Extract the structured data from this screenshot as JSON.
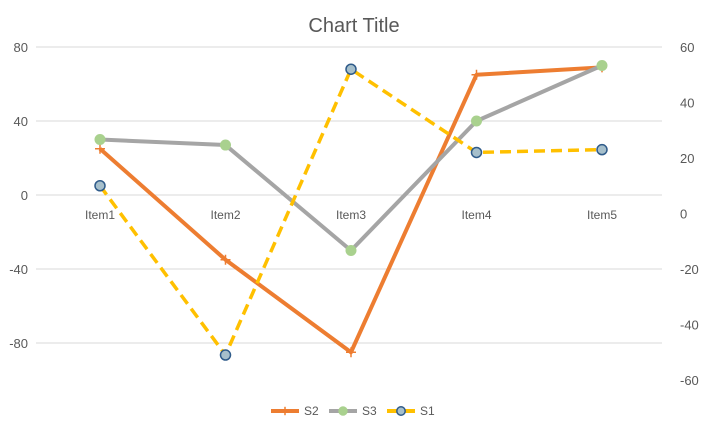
{
  "chart_data": {
    "type": "line",
    "title": "Chart Title",
    "categories": [
      "Item1",
      "Item2",
      "Item3",
      "Item4",
      "Item5"
    ],
    "y_left": {
      "min": -100,
      "max": 80,
      "ticks": [
        80,
        40,
        0,
        -40,
        -80
      ]
    },
    "y_right": {
      "min": -60,
      "max": 60,
      "ticks": [
        60,
        40,
        20,
        0,
        -20,
        -40,
        -60
      ]
    },
    "grid": true,
    "legend_position": "bottom",
    "series": [
      {
        "name": "S2",
        "axis": "left",
        "values": [
          25,
          -35,
          -85,
          65,
          69
        ],
        "color": "#ED7D31",
        "style": "solid",
        "marker": "plus"
      },
      {
        "name": "S3",
        "axis": "left",
        "values": [
          30,
          27,
          -30,
          40,
          70
        ],
        "color": "#A5A5A5",
        "style": "solid",
        "marker": "circle",
        "marker_color": "#A9D18E"
      },
      {
        "name": "S1",
        "axis": "right",
        "values": [
          10,
          -51,
          52,
          22,
          23
        ],
        "color": "#FFC000",
        "style": "dashed",
        "marker": "circle",
        "marker_color": "#A6BFCB",
        "marker_stroke": "#2F5B8A"
      }
    ]
  }
}
